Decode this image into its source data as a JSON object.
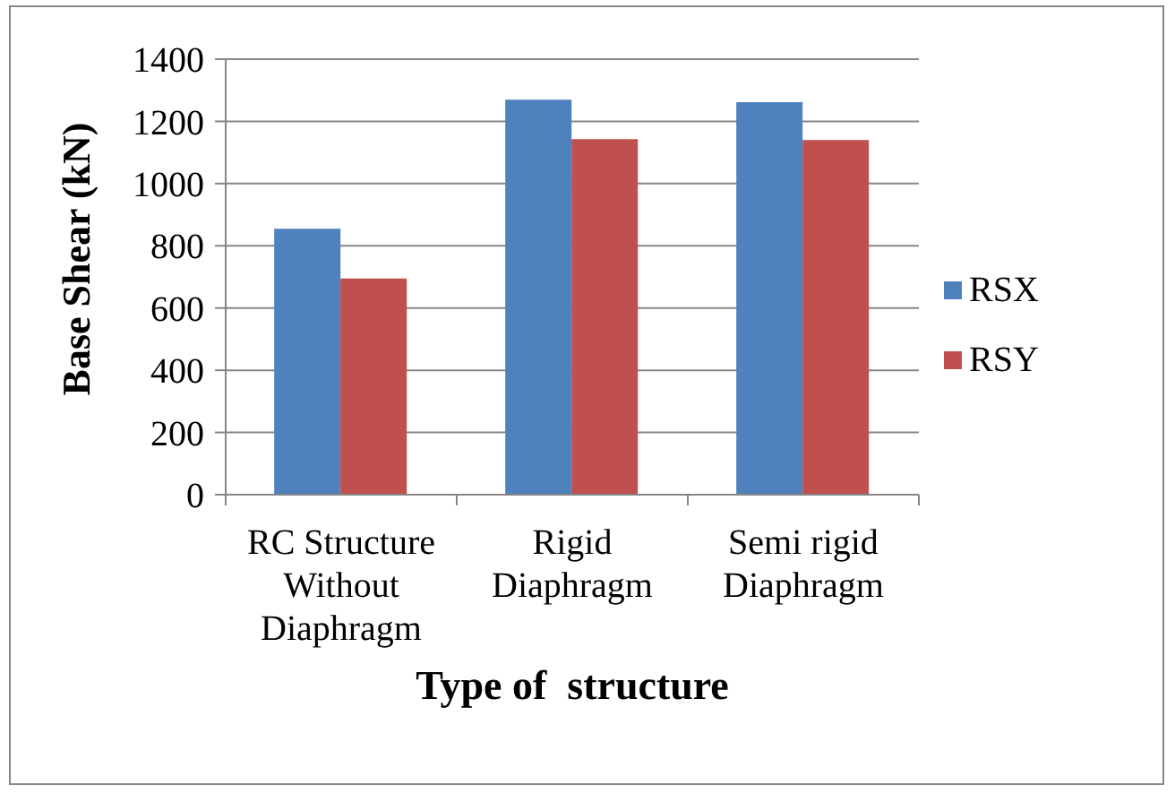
{
  "chart_data": {
    "type": "bar",
    "xlabel": "Type of  structure",
    "ylabel": "Base Shear (kN)",
    "categories": [
      "RC Structure Without Diaphragm",
      "Rigid Diaphragm",
      "Semi rigid Diaphragm"
    ],
    "series": [
      {
        "name": "RSX",
        "color": "#4f81bd",
        "values": [
          855,
          1270,
          1262
        ]
      },
      {
        "name": "RSY",
        "color": "#c0504d",
        "values": [
          695,
          1143,
          1140
        ]
      }
    ],
    "ylim": [
      0,
      1400
    ],
    "yticks": [
      0,
      200,
      400,
      600,
      800,
      1000,
      1200,
      1400
    ],
    "grid": "y",
    "legend": "right"
  }
}
